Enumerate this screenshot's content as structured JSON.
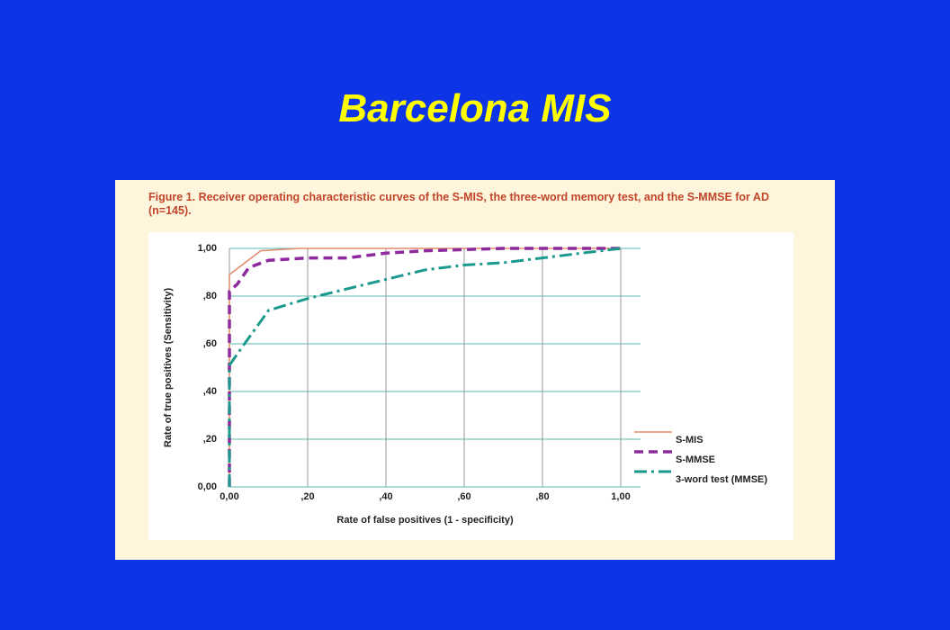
{
  "slide": {
    "title": "Barcelona MIS"
  },
  "figure": {
    "caption": "Figure 1. Receiver operating characteristic curves of the S-MIS, the three-word memory test, and the S-MMSE for AD (n=145)."
  },
  "chart_data": {
    "type": "line",
    "x_label": "Rate of false positives (1 - specificity)",
    "y_label": "Rate of true positives (Sensitivity)",
    "xlim": [
      0,
      1
    ],
    "ylim": [
      0,
      1
    ],
    "xticks": [
      {
        "value": 0,
        "label": "0,00"
      },
      {
        "value": 0.2,
        "label": ",20"
      },
      {
        "value": 0.4,
        "label": ",40"
      },
      {
        "value": 0.6,
        "label": ",60"
      },
      {
        "value": 0.8,
        "label": ",80"
      },
      {
        "value": 1,
        "label": "1,00"
      }
    ],
    "yticks": [
      {
        "value": 0,
        "label": "0,00"
      },
      {
        "value": 0.2,
        "label": ",20"
      },
      {
        "value": 0.4,
        "label": ",40"
      },
      {
        "value": 0.6,
        "label": ",60"
      },
      {
        "value": 0.8,
        "label": ",80"
      },
      {
        "value": 1,
        "label": "1,00"
      }
    ],
    "grid": true,
    "series": [
      {
        "name": "S-MIS",
        "color": "#e08a6a",
        "dash": "none",
        "width": 1.5,
        "x": [
          0,
          0,
          0.08,
          0.18,
          1
        ],
        "values": [
          0,
          0.89,
          0.99,
          1,
          1
        ]
      },
      {
        "name": "S-MMSE",
        "color": "#8e2a9e",
        "dash": "10 6",
        "width": 3.5,
        "x": [
          0,
          0,
          0.02,
          0.05,
          0.1,
          0.2,
          0.3,
          0.4,
          0.5,
          0.7,
          1
        ],
        "values": [
          0,
          0.82,
          0.85,
          0.92,
          0.95,
          0.96,
          0.96,
          0.98,
          0.99,
          1,
          1
        ]
      },
      {
        "name": "3-word test (MMSE)",
        "color": "#1a9a8c",
        "dash": "14 5 3 5",
        "width": 3,
        "x": [
          0,
          0,
          0.03,
          0.1,
          0.2,
          0.3,
          0.4,
          0.5,
          0.6,
          0.7,
          0.8,
          0.9,
          1
        ],
        "values": [
          0,
          0.51,
          0.58,
          0.74,
          0.79,
          0.83,
          0.87,
          0.91,
          0.93,
          0.94,
          0.96,
          0.98,
          1
        ]
      }
    ]
  }
}
